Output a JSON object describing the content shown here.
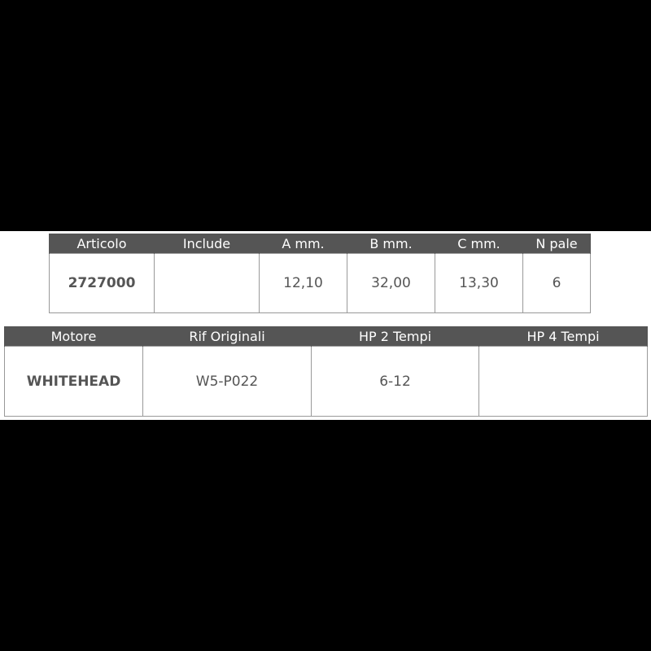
{
  "product_table": {
    "headers": [
      "Articolo",
      "Include",
      "A mm.",
      "B mm.",
      "C mm.",
      "N pale"
    ],
    "row": [
      "2727000",
      "",
      "12,10",
      "32,00",
      "13,30",
      "6"
    ]
  },
  "engine_table": {
    "headers": [
      "Motore",
      "Rif Originali",
      "HP 2 Tempi",
      "HP 4 Tempi"
    ],
    "row": [
      "WHITEHEAD",
      "W5-P022",
      "6-12",
      ""
    ]
  },
  "colors": {
    "header_bg": "#555555",
    "border": "#999999",
    "text": "#555555",
    "background": "#000000"
  }
}
